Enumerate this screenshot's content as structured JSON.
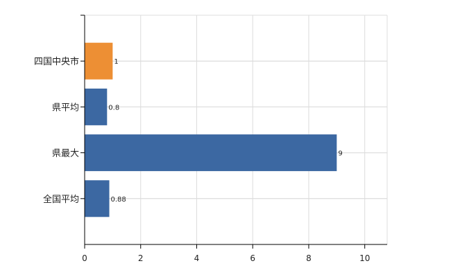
{
  "chart_data": {
    "type": "bar",
    "orientation": "horizontal",
    "categories": [
      "四国中央市",
      "県平均",
      "県最大",
      "全国平均"
    ],
    "values": [
      1,
      0.8,
      9,
      0.88
    ],
    "value_labels": [
      "1",
      "0.8",
      "9",
      "0.88"
    ],
    "bar_colors": [
      "#ED8F34",
      "#3C68A2",
      "#3C68A2",
      "#3C68A2"
    ],
    "xlim": [
      0,
      10.8
    ],
    "xticks": [
      0,
      2,
      4,
      6,
      8,
      10
    ],
    "tick_labels": [
      "0",
      "2",
      "4",
      "6",
      "8",
      "10"
    ],
    "grid": true,
    "title": "",
    "xlabel": "",
    "ylabel": ""
  }
}
